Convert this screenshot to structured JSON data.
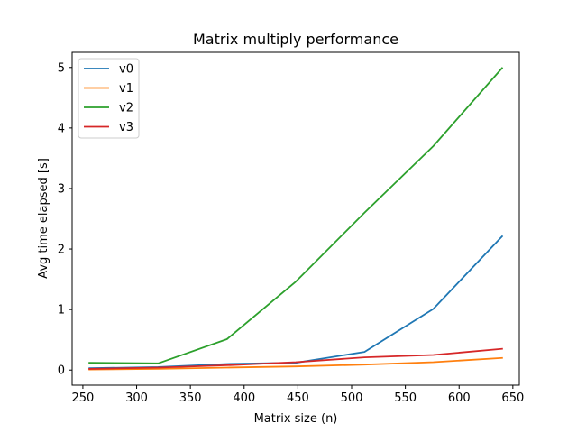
{
  "chart_data": {
    "type": "line",
    "title": "Matrix multiply performance",
    "xlabel": "Matrix size (n)",
    "ylabel": "Avg time elapsed [s]",
    "xlim": [
      240,
      656
    ],
    "ylim": [
      -0.25,
      5.25
    ],
    "xticks": [
      250,
      300,
      350,
      400,
      450,
      500,
      550,
      600,
      650
    ],
    "yticks": [
      0,
      1,
      2,
      3,
      4,
      5
    ],
    "grid": false,
    "legend_position": "top-left",
    "x": [
      256,
      320,
      384,
      448,
      512,
      576,
      640
    ],
    "series": [
      {
        "name": "v0",
        "color": "#1f77b4",
        "values": [
          0.03,
          0.05,
          0.1,
          0.12,
          0.3,
          1.01,
          2.21
        ]
      },
      {
        "name": "v1",
        "color": "#ff7f0e",
        "values": [
          0.01,
          0.02,
          0.04,
          0.06,
          0.09,
          0.13,
          0.2
        ]
      },
      {
        "name": "v2",
        "color": "#2ca02c",
        "values": [
          0.12,
          0.11,
          0.51,
          1.46,
          2.6,
          3.7,
          4.99
        ]
      },
      {
        "name": "v3",
        "color": "#d62728",
        "values": [
          0.02,
          0.04,
          0.08,
          0.13,
          0.21,
          0.25,
          0.35
        ]
      }
    ]
  }
}
